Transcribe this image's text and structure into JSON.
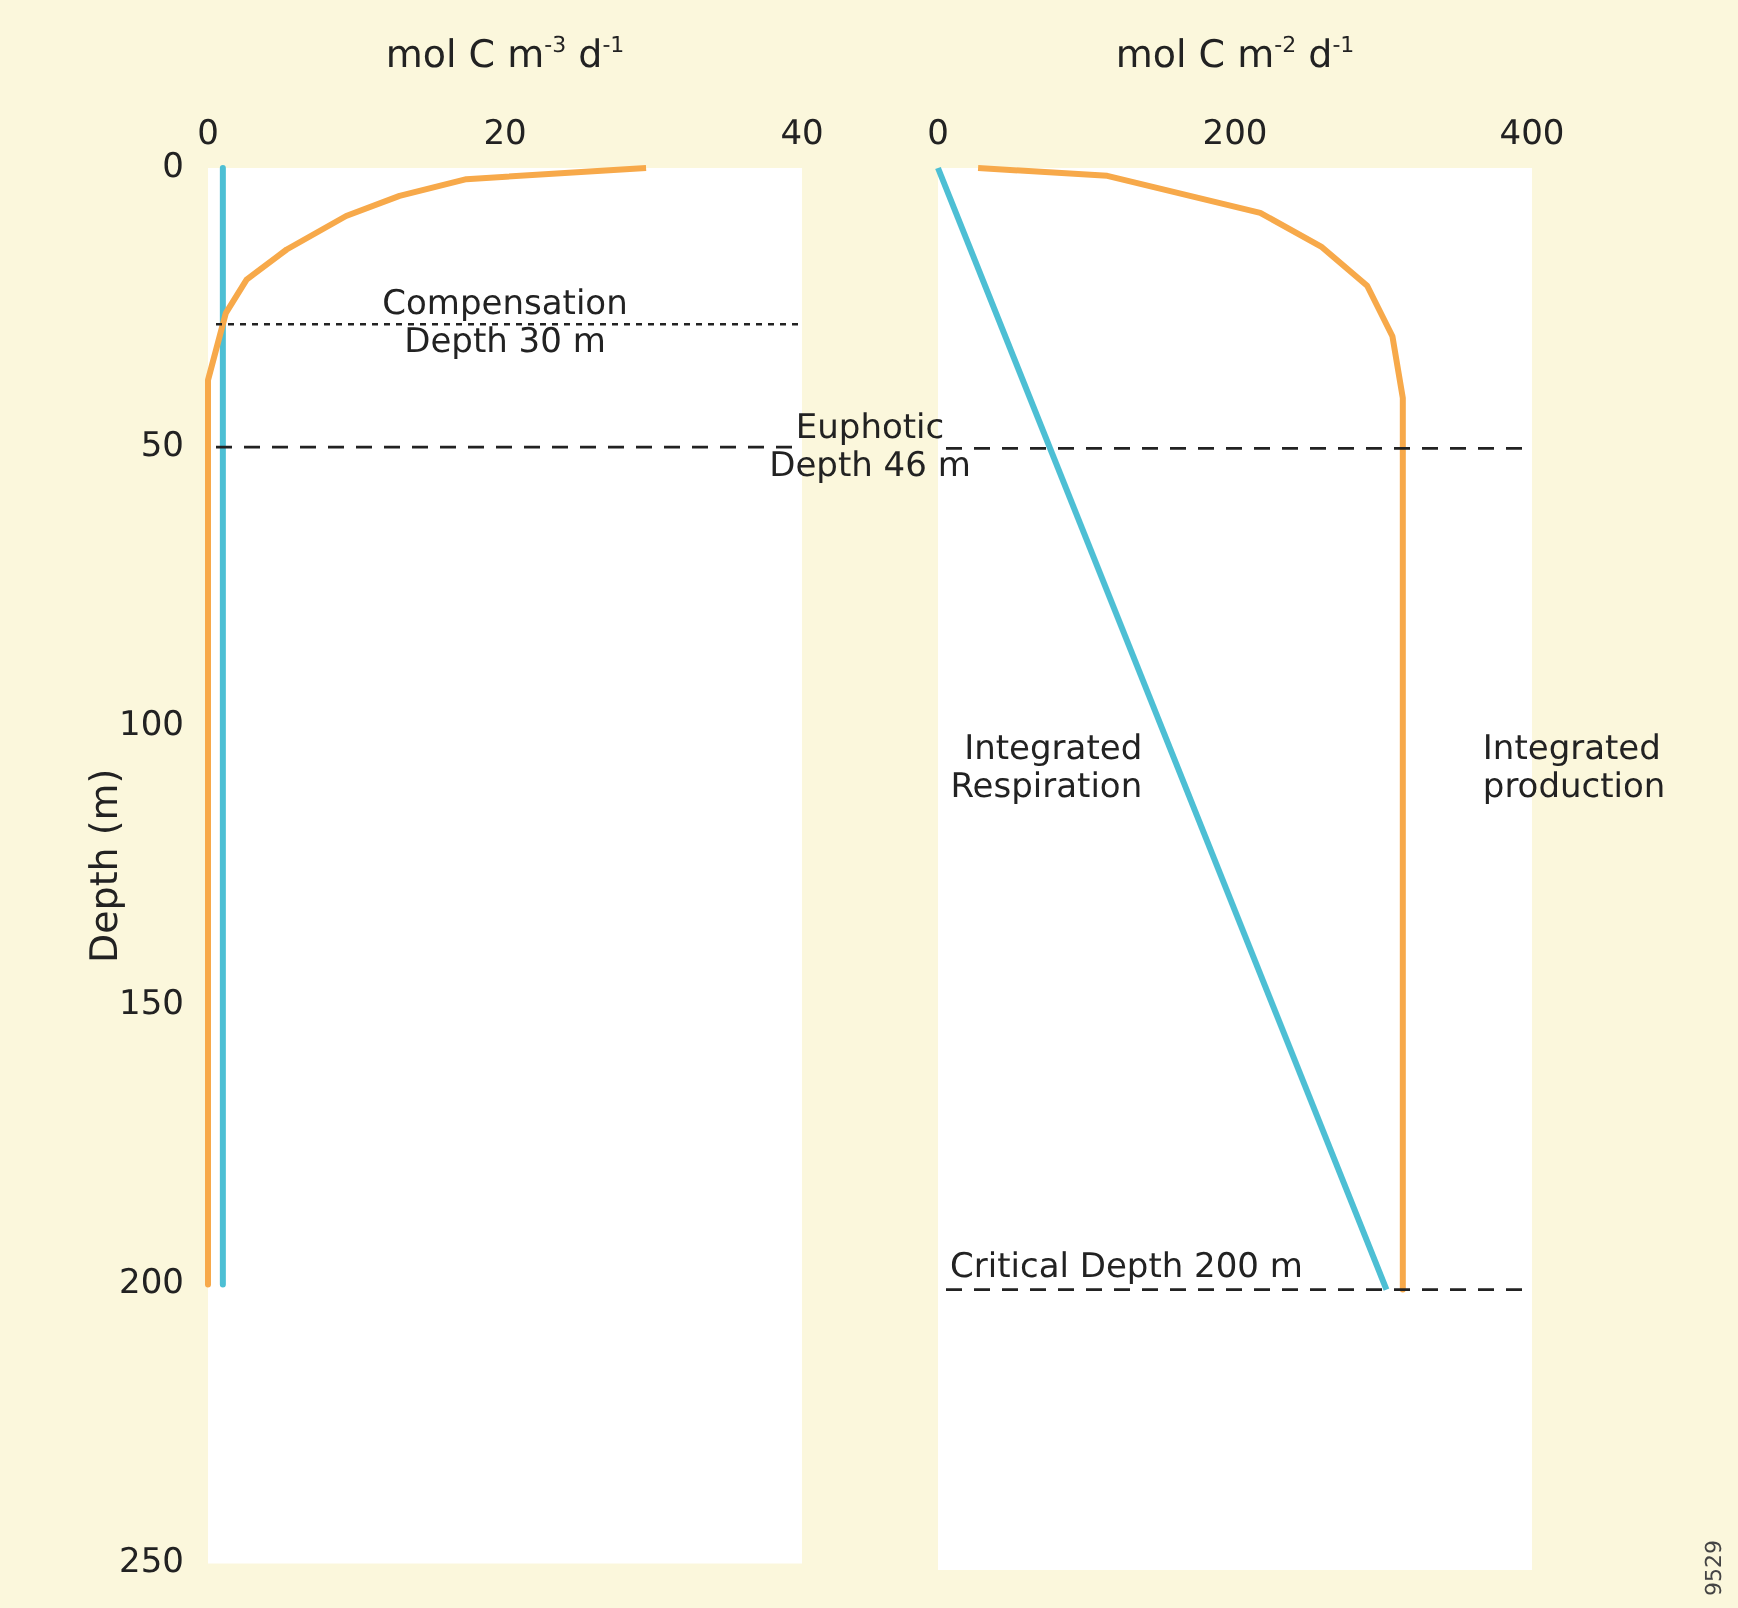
{
  "chart_data": [
    {
      "type": "line",
      "xlabel": "mol C m$^{-3}$ d$^{-1}$",
      "ylabel": "Depth (m)",
      "xlim": [
        0,
        40
      ],
      "xticks": [
        0,
        20,
        40
      ],
      "ylim": [
        250,
        0
      ],
      "yticks": [
        0,
        50,
        100,
        150,
        200,
        250
      ],
      "grid": false,
      "series": [
        {
          "color": "#f7a94a",
          "x": [
            29.5,
            17.4,
            12.9,
            9.3,
            5.3,
            2.6,
            1.2,
            0,
            0
          ],
          "values": [
            0,
            2,
            5,
            8.6,
            14.6,
            20,
            26,
            38,
            200
          ]
        },
        {
          "color": "#4dbfd4",
          "x": [
            1,
            1
          ],
          "values": [
            0,
            200
          ]
        }
      ],
      "ref_lines": [
        {
          "axis": "y",
          "value": 28,
          "label": "Compensation\nDepth 30 m",
          "line_style": "dotted",
          "color": "#222222"
        },
        {
          "axis": "y",
          "value": 50,
          "line_style": "dashed",
          "color": "#222222"
        }
      ]
    },
    {
      "type": "line",
      "xlabel": "mol C m$^{-2}$ d$^{-1}$",
      "xlim": [
        0,
        400
      ],
      "xticks": [
        0,
        200,
        400
      ],
      "ylim": [
        250,
        0
      ],
      "yticks": [
        0,
        50,
        100,
        150,
        200,
        250
      ],
      "grid": false,
      "tick_labels": "x",
      "series": [
        {
          "name": "Integrated Respiration",
          "color": "#4dbfd4",
          "x": [
            0,
            302
          ],
          "values": [
            0,
            200
          ]
        },
        {
          "name": "Integrated production",
          "color": "#f7a94a",
          "x": [
            27,
            114,
            217,
            258,
            289,
            306,
            313,
            313
          ],
          "values": [
            0,
            1.4,
            8,
            14,
            21,
            30,
            41,
            200
          ]
        }
      ],
      "ref_lines": [
        {
          "axis": "y",
          "value": 50,
          "label": "Euphotic\nDepth 46 m",
          "line_style": "dashed",
          "color": "#222222"
        },
        {
          "axis": "y",
          "value": 200,
          "label": "Critical Depth 200 m",
          "line_style": "dashed",
          "color": "#222222"
        }
      ],
      "annotations": [
        "9529"
      ]
    }
  ]
}
